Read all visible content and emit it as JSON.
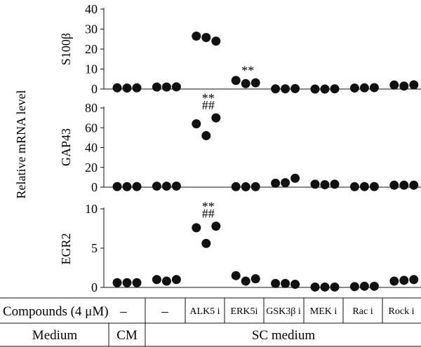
{
  "chart_data": {
    "type": "scatter",
    "shared_ylabel": "Relative mRNA level",
    "groups": [
      "CM –",
      "–",
      "ALK5 i",
      "ERK5i",
      "GSK3β i",
      "MEK i",
      "Rac i",
      "Rock i"
    ],
    "panels": [
      {
        "ylabel": "S100β",
        "ylim": [
          0,
          40
        ],
        "yticks": [
          "0",
          "10",
          "20",
          "30",
          "40"
        ],
        "points": [
          [
            0.6,
            0.5,
            0.6
          ],
          [
            1.0,
            1.0,
            1.1
          ],
          [
            26.5,
            25.8,
            24.0
          ],
          [
            4.3,
            2.7,
            3.1
          ],
          [
            0.1,
            0.1,
            0.2
          ],
          [
            0.0,
            0.0,
            0.1
          ],
          [
            0.5,
            0.6,
            0.7
          ],
          [
            2.0,
            1.5,
            2.1
          ]
        ],
        "annotations": [
          {
            "group": 3,
            "lines": [
              "**"
            ]
          }
        ]
      },
      {
        "ylabel": "GAP43",
        "ylim": [
          0,
          80
        ],
        "yticks": [
          "0",
          "20",
          "40",
          "60",
          "80"
        ],
        "points": [
          [
            0.6,
            0.5,
            0.6
          ],
          [
            1.0,
            1.0,
            1.1
          ],
          [
            64,
            52,
            70
          ],
          [
            0.5,
            0.4,
            0.5
          ],
          [
            4.0,
            4.5,
            9.0
          ],
          [
            3.0,
            2.5,
            3.0
          ],
          [
            0.5,
            0.6,
            0.6
          ],
          [
            2.0,
            2.0,
            2.0
          ]
        ],
        "annotations": [
          {
            "group": 2,
            "lines": [
              "**",
              "##"
            ]
          }
        ]
      },
      {
        "ylabel": "EGR2",
        "ylim": [
          0,
          10
        ],
        "yticks": [
          "0",
          "5",
          "10"
        ],
        "points": [
          [
            0.6,
            0.6,
            0.6
          ],
          [
            1.0,
            0.8,
            1.0
          ],
          [
            7.6,
            5.6,
            7.8
          ],
          [
            1.5,
            0.8,
            1.1
          ],
          [
            0.5,
            0.5,
            0.4
          ],
          [
            0.05,
            0.05,
            0.05
          ],
          [
            0.1,
            0.15,
            0.15
          ],
          [
            0.8,
            0.9,
            1.0
          ]
        ],
        "annotations": [
          {
            "group": 2,
            "lines": [
              "**",
              "##"
            ]
          }
        ]
      }
    ]
  },
  "table": {
    "compounds_label": "Compounds (4 μM)",
    "compounds": [
      "–",
      "–",
      "ALK5 i",
      "ERK5i",
      "GSK3β i",
      "MEK i",
      "Rac i",
      "Rock i"
    ],
    "medium_label": "Medium",
    "cm_label": "CM",
    "sc_label": "SC medium"
  }
}
